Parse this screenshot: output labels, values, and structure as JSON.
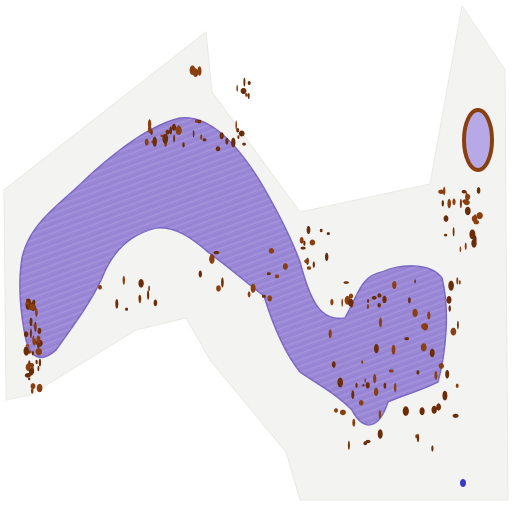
{
  "image": {
    "subject": "stained-tissue-section",
    "colors": {
      "background": "#ffffff",
      "scan_area": "#f3f3f1",
      "scan_area_edge": "#e9e9e6",
      "tissue": "#9a88d6",
      "tissue_dark": "#7b67c2",
      "tissue_light": "#b7a9e6",
      "stain_brown": "#8a3f10",
      "stain_brown_dark": "#6b2c08",
      "marker": "#3a36c8"
    }
  }
}
